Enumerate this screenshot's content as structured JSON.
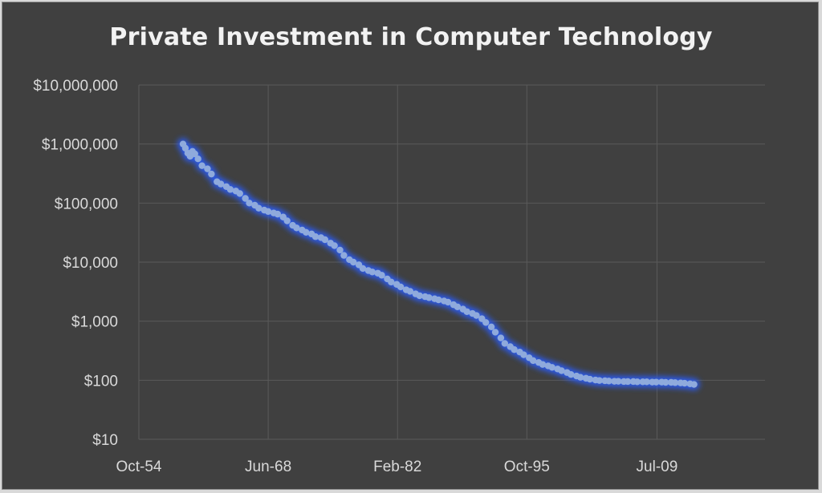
{
  "chart_data": {
    "type": "scatter",
    "title": "Private Investment in Computer Technology",
    "xlabel": "",
    "ylabel": "",
    "y_scale": "log",
    "ylim": [
      10,
      10000000
    ],
    "y_ticks": [
      10,
      100,
      1000,
      10000,
      100000,
      1000000,
      10000000
    ],
    "y_tick_labels": [
      "$10",
      "$100",
      "$1,000",
      "$10,000",
      "$100,000",
      "$1,000,000",
      "$10,000,000"
    ],
    "xlim": [
      "1954-10",
      "2020-12"
    ],
    "x_ticks": [
      "1954-10",
      "1968-06",
      "1982-02",
      "1995-10",
      "2009-07"
    ],
    "x_tick_labels": [
      "Oct-54",
      "Jun-68",
      "Feb-82",
      "Oct-95",
      "Jul-09"
    ],
    "grid": true,
    "legend": "none",
    "colors": {
      "background": "#404040",
      "series": "#8faadc",
      "glow": "#2c5cf0",
      "grid": "#5a5a5a",
      "text": "#d9d9d9"
    },
    "series": [
      {
        "points": [
          [
            "1959-06",
            1000000
          ],
          [
            "1959-09",
            850000
          ],
          [
            "1959-12",
            700000
          ],
          [
            "1960-03",
            620000
          ],
          [
            "1960-06",
            750000
          ],
          [
            "1960-09",
            680000
          ],
          [
            "1961-01",
            560000
          ],
          [
            "1961-06",
            430000
          ],
          [
            "1962-01",
            380000
          ],
          [
            "1962-06",
            310000
          ],
          [
            "1963-01",
            230000
          ],
          [
            "1963-06",
            210000
          ],
          [
            "1964-01",
            190000
          ],
          [
            "1964-06",
            170000
          ],
          [
            "1965-01",
            160000
          ],
          [
            "1965-06",
            145000
          ],
          [
            "1966-01",
            120000
          ],
          [
            "1966-06",
            100000
          ],
          [
            "1967-01",
            92000
          ],
          [
            "1967-06",
            82000
          ],
          [
            "1968-01",
            76000
          ],
          [
            "1968-06",
            72000
          ],
          [
            "1969-01",
            68000
          ],
          [
            "1969-06",
            65000
          ],
          [
            "1970-01",
            58000
          ],
          [
            "1970-06",
            50000
          ],
          [
            "1971-01",
            42000
          ],
          [
            "1971-06",
            38000
          ],
          [
            "1972-01",
            35000
          ],
          [
            "1972-06",
            32000
          ],
          [
            "1973-01",
            30000
          ],
          [
            "1973-06",
            27000
          ],
          [
            "1974-01",
            26000
          ],
          [
            "1974-06",
            24000
          ],
          [
            "1975-01",
            21000
          ],
          [
            "1975-06",
            19000
          ],
          [
            "1976-01",
            16000
          ],
          [
            "1976-06",
            13000
          ],
          [
            "1977-01",
            11000
          ],
          [
            "1977-06",
            10000
          ],
          [
            "1978-01",
            9000
          ],
          [
            "1978-06",
            7800
          ],
          [
            "1979-01",
            7200
          ],
          [
            "1979-06",
            6800
          ],
          [
            "1980-01",
            6500
          ],
          [
            "1980-06",
            6000
          ],
          [
            "1981-01",
            5200
          ],
          [
            "1981-06",
            4600
          ],
          [
            "1982-01",
            4200
          ],
          [
            "1982-06",
            3800
          ],
          [
            "1983-01",
            3400
          ],
          [
            "1983-06",
            3200
          ],
          [
            "1984-01",
            2900
          ],
          [
            "1984-06",
            2700
          ],
          [
            "1985-01",
            2600
          ],
          [
            "1985-06",
            2500
          ],
          [
            "1986-01",
            2400
          ],
          [
            "1986-06",
            2300
          ],
          [
            "1987-01",
            2200
          ],
          [
            "1987-06",
            2100
          ],
          [
            "1988-01",
            1900
          ],
          [
            "1988-06",
            1750
          ],
          [
            "1989-01",
            1600
          ],
          [
            "1989-06",
            1450
          ],
          [
            "1990-01",
            1350
          ],
          [
            "1990-06",
            1250
          ],
          [
            "1991-01",
            1100
          ],
          [
            "1991-06",
            950
          ],
          [
            "1992-01",
            800
          ],
          [
            "1992-06",
            650
          ],
          [
            "1993-01",
            520
          ],
          [
            "1993-06",
            420
          ],
          [
            "1994-01",
            370
          ],
          [
            "1994-06",
            330
          ],
          [
            "1995-01",
            300
          ],
          [
            "1995-06",
            270
          ],
          [
            "1996-01",
            240
          ],
          [
            "1996-06",
            215
          ],
          [
            "1997-01",
            200
          ],
          [
            "1997-06",
            185
          ],
          [
            "1998-01",
            175
          ],
          [
            "1998-06",
            165
          ],
          [
            "1999-01",
            155
          ],
          [
            "1999-06",
            145
          ],
          [
            "2000-01",
            135
          ],
          [
            "2000-06",
            125
          ],
          [
            "2001-01",
            118
          ],
          [
            "2001-06",
            112
          ],
          [
            "2002-01",
            108
          ],
          [
            "2002-06",
            104
          ],
          [
            "2003-01",
            101
          ],
          [
            "2003-06",
            99
          ],
          [
            "2004-01",
            98
          ],
          [
            "2004-06",
            97
          ],
          [
            "2005-01",
            96
          ],
          [
            "2005-06",
            96
          ],
          [
            "2006-01",
            95
          ],
          [
            "2006-06",
            95
          ],
          [
            "2007-01",
            95
          ],
          [
            "2007-06",
            94
          ],
          [
            "2008-01",
            94
          ],
          [
            "2008-06",
            94
          ],
          [
            "2009-01",
            93
          ],
          [
            "2009-06",
            93
          ],
          [
            "2010-01",
            93
          ],
          [
            "2010-06",
            92
          ],
          [
            "2011-01",
            92
          ],
          [
            "2011-06",
            91
          ],
          [
            "2012-01",
            90
          ],
          [
            "2012-06",
            89
          ],
          [
            "2013-01",
            87
          ],
          [
            "2013-06",
            85
          ]
        ]
      }
    ]
  }
}
